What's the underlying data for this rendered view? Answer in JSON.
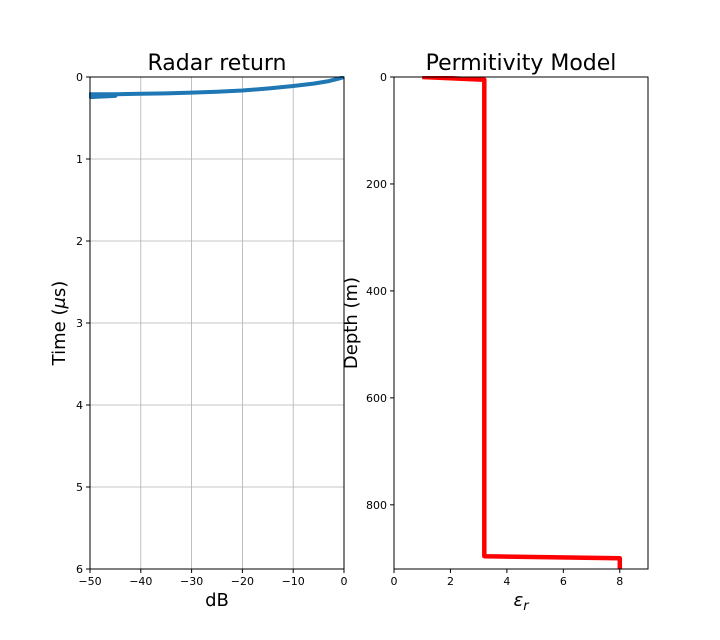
{
  "chart_data": [
    {
      "type": "line",
      "title": "Radar return",
      "xlabel": "dB",
      "ylabel": "Time (μs)",
      "xlim": [
        -50,
        0
      ],
      "ylim": [
        6,
        0
      ],
      "y_inverted": true,
      "grid": true,
      "xticks": [
        -50,
        -40,
        -30,
        -20,
        -10,
        0
      ],
      "xtick_labels": [
        "−50",
        "−40",
        "−30",
        "−20",
        "−10",
        "0"
      ],
      "yticks": [
        0,
        1,
        2,
        3,
        4,
        5,
        6
      ],
      "ytick_labels": [
        "0",
        "1",
        "2",
        "3",
        "4",
        "5",
        "6"
      ],
      "series": [
        {
          "color": "#1f77b4",
          "x": [
            0,
            -1,
            -3,
            -6,
            -10,
            -15,
            -20,
            -25,
            -30,
            -35,
            -40,
            -45,
            -50,
            -50,
            -45,
            -50,
            -45,
            -50
          ],
          "y": [
            0.0,
            0.02,
            0.05,
            0.08,
            0.11,
            0.14,
            0.165,
            0.18,
            0.19,
            0.2,
            0.205,
            0.21,
            0.21,
            0.22,
            0.22,
            0.235,
            0.23,
            0.245
          ]
        }
      ]
    },
    {
      "type": "line",
      "title": "Permitivity Model",
      "xlabel": "εr",
      "ylabel": "Depth (m)",
      "xlim": [
        0,
        9
      ],
      "ylim": [
        920,
        0
      ],
      "y_inverted": true,
      "grid": false,
      "xticks": [
        0,
        2,
        4,
        6,
        8
      ],
      "xtick_labels": [
        "0",
        "2",
        "4",
        "6",
        "8"
      ],
      "yticks": [
        0,
        200,
        400,
        600,
        800
      ],
      "ytick_labels": [
        "0",
        "200",
        "400",
        "600",
        "800"
      ],
      "series": [
        {
          "color": "#ff0000",
          "x": [
            1.0,
            3.2,
            3.2,
            3.2,
            8.0,
            8.0
          ],
          "y": [
            0,
            5,
            10,
            896,
            900,
            920
          ]
        }
      ]
    }
  ]
}
